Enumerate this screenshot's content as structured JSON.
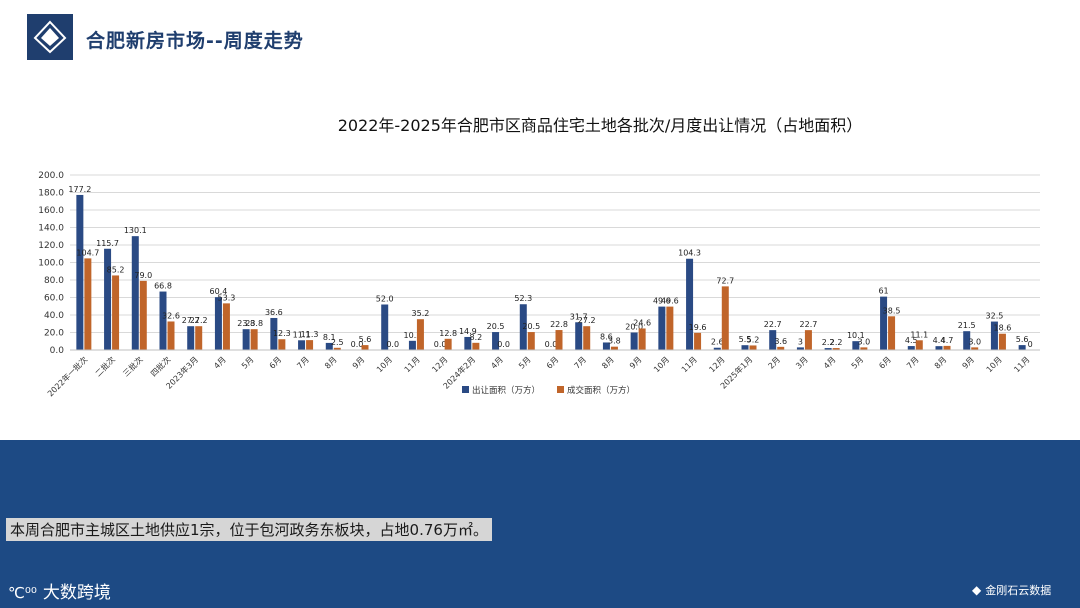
{
  "header": {
    "title": "合肥新房市场--周度走势"
  },
  "footer": {
    "summary": "本周合肥市主城区土地供应1宗，位于包河政务东板块，占地0.76万㎡。",
    "brand_left": "大数跨境",
    "brand_left_symbol": "℃⁰⁰",
    "brand_right": "金刚石云数据"
  },
  "colors": {
    "primary": "#1f3e6e",
    "series1": "#2a4a84",
    "series2": "#c0652a",
    "band": "#1d4a84"
  },
  "chart_data": {
    "type": "bar",
    "title": "2022年-2025年合肥市区商品住宅土地各批次/月度出让情况（占地面积）",
    "ylim": [
      0,
      200
    ],
    "yticks": [
      "0.0",
      "20.0",
      "40.0",
      "60.0",
      "80.0",
      "100.0",
      "120.0",
      "140.0",
      "160.0",
      "180.0",
      "200.0"
    ],
    "grid": true,
    "legend_position": "bottom",
    "categories": [
      "2022年一批次",
      "二批次",
      "三批次",
      "四批次",
      "2023年3月",
      "4月",
      "5月",
      "6月",
      "7月",
      "8月",
      "9月",
      "10月",
      "11月",
      "12月",
      "2024年2月",
      "4月",
      "5月",
      "6月",
      "7月",
      "8月",
      "9月",
      "10月",
      "11月",
      "12月",
      "2025年1月",
      "2月",
      "3月",
      "4月",
      "5月",
      "6月",
      "7月",
      "8月",
      "9月",
      "10月",
      "11月"
    ],
    "series": [
      {
        "name": "出让面积（万方）",
        "values": [
          177.2,
          115.7,
          130.1,
          66.8,
          27.2,
          60.4,
          23.8,
          36.6,
          11.1,
          8.1,
          0.0,
          52.0,
          10.5,
          0.0,
          14.9,
          20.5,
          52.3,
          0.0,
          31.7,
          8.6,
          20.0,
          49.6,
          104.3,
          2.6,
          5.5,
          22.7,
          3,
          2.2,
          10.1,
          61,
          4.5,
          4.4,
          21.5,
          32.5,
          5.6
        ],
        "labels": [
          "177.2",
          "115.7",
          "130.1",
          "66.8",
          "27.2",
          "60.4",
          "23.8",
          "36.6",
          "11.1",
          "8.1",
          "0.0",
          "52.0",
          "10.5",
          "0.0",
          "14.9",
          "20.5",
          "52.3",
          "0.0",
          "31.7",
          "8.6",
          "20.0",
          "49.6",
          "104.3",
          "2.6",
          "5.5",
          "22.7",
          "3",
          "2.2",
          "10.1",
          "61",
          "4.5",
          "4.4",
          "21.5",
          "32.5",
          "5.6"
        ]
      },
      {
        "name": "成交面积（万方）",
        "values": [
          104.7,
          85.2,
          79.0,
          32.6,
          27.2,
          53.3,
          23.8,
          12.3,
          11.3,
          2.5,
          5.6,
          0.0,
          35.2,
          12.8,
          8.2,
          0.0,
          20.5,
          22.8,
          27.2,
          3.8,
          24.6,
          49.6,
          19.6,
          72.7,
          5.2,
          3.6,
          22.7,
          2.2,
          3.0,
          38.5,
          11.1,
          4.7,
          3.0,
          18.6,
          0
        ],
        "labels": [
          "104.7",
          "85.2",
          "79.0",
          "32.6",
          "27.2",
          "53.3",
          "23.8",
          "12.3",
          "11.3",
          "2.5",
          "5.6",
          "0.0",
          "35.2",
          "12.8",
          "8.2",
          "0.0",
          "20.5",
          "22.8",
          "27.2",
          "3.8",
          "24.6",
          "49.6",
          "19.6",
          "72.7",
          "5.2",
          "3.6",
          "22.7",
          "2.2",
          "3.0",
          "38.5",
          "11.1",
          "4.7",
          "3.0",
          "18.6",
          "0"
        ]
      }
    ]
  }
}
